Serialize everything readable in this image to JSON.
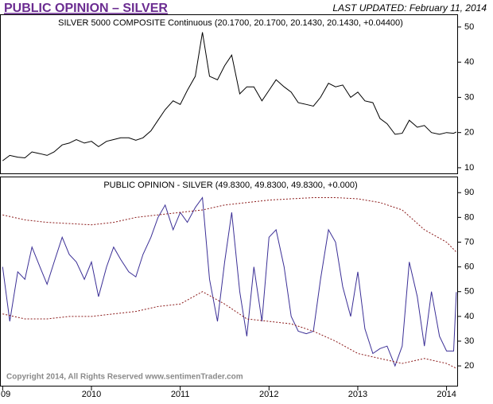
{
  "header": {
    "title": "PUBLIC OPINION – SILVER",
    "updated": "LAST UPDATED:  February 11, 2014"
  },
  "chart_data": [
    {
      "type": "line",
      "title": "SILVER 5000 COMPOSITE Continuous (20.1700, 20.1700, 20.1430, 20.1430, +0.04400)",
      "x": [
        2009.0,
        2009.08,
        2009.17,
        2009.25,
        2009.33,
        2009.42,
        2009.5,
        2009.58,
        2009.67,
        2009.75,
        2009.83,
        2009.92,
        2010.0,
        2010.08,
        2010.17,
        2010.25,
        2010.33,
        2010.42,
        2010.5,
        2010.58,
        2010.67,
        2010.75,
        2010.83,
        2010.92,
        2011.0,
        2011.08,
        2011.17,
        2011.25,
        2011.33,
        2011.42,
        2011.5,
        2011.58,
        2011.67,
        2011.75,
        2011.83,
        2011.92,
        2012.0,
        2012.08,
        2012.17,
        2012.25,
        2012.33,
        2012.42,
        2012.5,
        2012.58,
        2012.67,
        2012.75,
        2012.83,
        2012.92,
        2013.0,
        2013.08,
        2013.17,
        2013.25,
        2013.33,
        2013.42,
        2013.5,
        2013.58,
        2013.67,
        2013.75,
        2013.83,
        2013.92,
        2014.0,
        2014.08,
        2014.11
      ],
      "series": [
        {
          "color": "#000000",
          "values": [
            12,
            13.5,
            13,
            12.8,
            14.5,
            14,
            13.5,
            14.5,
            16.5,
            17,
            18,
            17,
            17.5,
            16,
            17.5,
            18,
            18.5,
            18.5,
            17.8,
            18.5,
            20.5,
            23.5,
            26.5,
            29,
            28,
            32,
            36,
            48.5,
            36,
            35,
            39,
            42,
            31,
            33,
            33,
            29,
            32,
            35,
            33,
            31.5,
            28.5,
            28,
            27.5,
            30,
            34,
            33,
            33.5,
            30,
            31.5,
            29,
            28.5,
            24,
            22.5,
            19.5,
            19.8,
            23.5,
            21.5,
            22,
            20,
            19.5,
            20,
            19.8,
            20.17
          ]
        }
      ],
      "xlim": [
        2008.97,
        2014.12
      ],
      "ylim": [
        8.4,
        53.6
      ],
      "yticks": [
        10,
        20,
        30,
        40,
        50
      ]
    },
    {
      "type": "line",
      "title": "PUBLIC OPINION - SILVER (49.8300, 49.8300, 49.8300, +0.000)",
      "annotation": "Copyright 2014, All Rights Reserved  www.sentimenTrader.com",
      "x": [
        2009.0,
        2009.08,
        2009.17,
        2009.25,
        2009.33,
        2009.42,
        2009.5,
        2009.58,
        2009.67,
        2009.75,
        2009.83,
        2009.92,
        2010.0,
        2010.08,
        2010.17,
        2010.25,
        2010.33,
        2010.42,
        2010.5,
        2010.58,
        2010.67,
        2010.75,
        2010.83,
        2010.92,
        2011.0,
        2011.08,
        2011.17,
        2011.25,
        2011.33,
        2011.42,
        2011.5,
        2011.58,
        2011.67,
        2011.75,
        2011.83,
        2011.92,
        2012.0,
        2012.08,
        2012.17,
        2012.25,
        2012.33,
        2012.42,
        2012.5,
        2012.58,
        2012.67,
        2012.75,
        2012.83,
        2012.92,
        2013.0,
        2013.08,
        2013.17,
        2013.25,
        2013.33,
        2013.42,
        2013.5,
        2013.58,
        2013.67,
        2013.75,
        2013.83,
        2013.92,
        2014.0,
        2014.08,
        2014.11
      ],
      "series": [
        {
          "color": "#3b2f96",
          "values": [
            60,
            38,
            58,
            55,
            68,
            60,
            53,
            62,
            72,
            65,
            62,
            55,
            62,
            48,
            60,
            68,
            63,
            58,
            56,
            65,
            72,
            80,
            85,
            75,
            82,
            78,
            84,
            88,
            55,
            38,
            62,
            82,
            50,
            32,
            60,
            38,
            72,
            75,
            60,
            40,
            34,
            33,
            34,
            55,
            75,
            70,
            52,
            40,
            58,
            35,
            25,
            27,
            28,
            20,
            28,
            62,
            48,
            28,
            50,
            32,
            26,
            26,
            49.83
          ]
        },
        {
          "color": "#8b1a1a",
          "dash": true,
          "x": [
            2009.0,
            2009.25,
            2009.5,
            2009.75,
            2010.0,
            2010.25,
            2010.5,
            2010.75,
            2011.0,
            2011.25,
            2011.5,
            2011.75,
            2012.0,
            2012.25,
            2012.5,
            2012.75,
            2013.0,
            2013.25,
            2013.5,
            2013.75,
            2014.0,
            2014.11
          ],
          "values": [
            81,
            79,
            78,
            77.5,
            77,
            78,
            80,
            81,
            82,
            83,
            85,
            86,
            87,
            87.5,
            88,
            88,
            87.5,
            86,
            83,
            75,
            70,
            66
          ]
        },
        {
          "color": "#8b1a1a",
          "dash": true,
          "x": [
            2009.0,
            2009.25,
            2009.5,
            2009.75,
            2010.0,
            2010.25,
            2010.5,
            2010.75,
            2011.0,
            2011.25,
            2011.5,
            2011.75,
            2012.0,
            2012.25,
            2012.5,
            2012.75,
            2013.0,
            2013.25,
            2013.5,
            2013.75,
            2014.0,
            2014.11
          ],
          "values": [
            41,
            39,
            39,
            40,
            40,
            41,
            42,
            44,
            45,
            50,
            45,
            39,
            38,
            37,
            34,
            30,
            25,
            23,
            21,
            23,
            21,
            19
          ]
        }
      ],
      "xlim": [
        2008.97,
        2014.12
      ],
      "xticks": [
        {
          "value": 2009,
          "label": "09"
        },
        2010,
        2011,
        2012,
        2013,
        2014
      ],
      "ylim": [
        12,
        96.5
      ],
      "yticks": [
        20,
        30,
        40,
        50,
        60,
        70,
        80,
        90
      ]
    }
  ]
}
